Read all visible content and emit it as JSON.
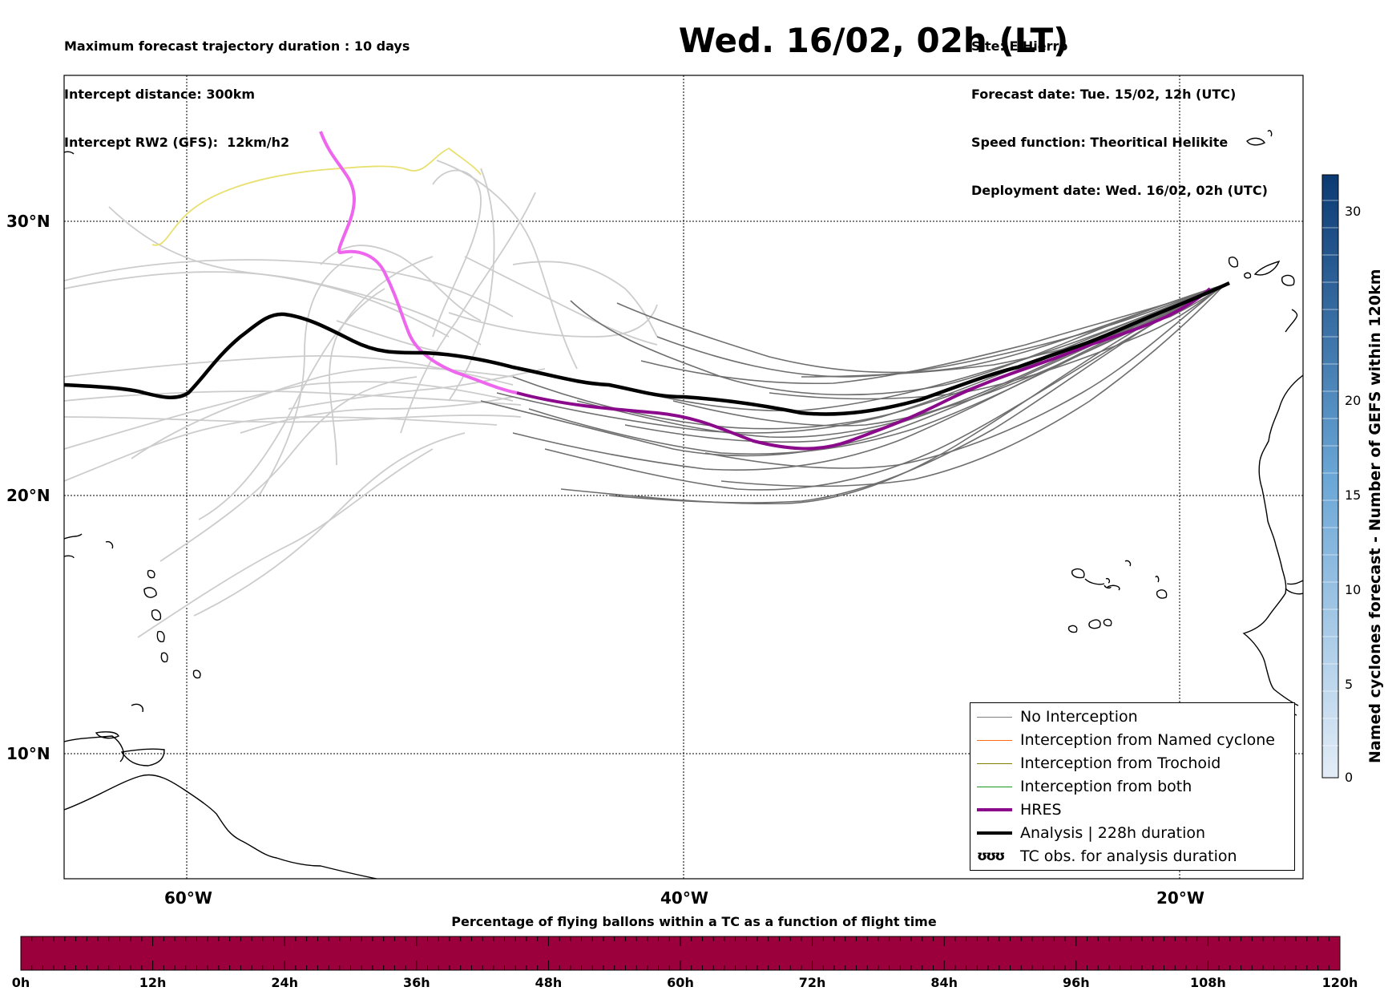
{
  "header_left": [
    "Maximum forecast trajectory duration : 10 days",
    "Intercept distance: 300km",
    "Intercept RW2 (GFS):  12km/h2"
  ],
  "title": "Wed. 16/02, 02h (LT)",
  "header_right": [
    "Site: ElHierro",
    "Forecast date: Tue. 15/02, 12h (UTC)",
    "Speed function: Theoritical Helikite",
    "Deployment date: Wed. 16/02, 02h (UTC)"
  ],
  "map": {
    "lat_labels": [
      "30°N",
      "20°N",
      "10°N"
    ],
    "lon_labels": [
      "60°W",
      "40°W",
      "20°W"
    ],
    "grid": "dotted"
  },
  "legend": {
    "items": [
      {
        "label": "No Interception",
        "color": "#808080"
      },
      {
        "label": "Interception from Named cyclone",
        "color": "#ff6a1a"
      },
      {
        "label": "Interception from Trochoid",
        "color": "#808000"
      },
      {
        "label": "Interception from both",
        "color": "#1a9a1a"
      },
      {
        "label": "HRES",
        "color": "#8b0a8b"
      },
      {
        "label": "Analysis | 228h duration",
        "color": "#000000"
      }
    ],
    "tc_symbol": "ʊʊʊ",
    "tc_label": "TC obs. for analysis duration"
  },
  "colorbar": {
    "title": "Named cyclones forecast - Number of GEFS within 120km",
    "ticks": [
      "0",
      "5",
      "10",
      "15",
      "20",
      "30"
    ],
    "color_low": "#dce8f4",
    "color_high": "#0b3a73"
  },
  "bottom_bar": {
    "title": "Percentage of flying ballons within a TC as a function of flight time",
    "ticks": [
      "0h",
      "12h",
      "24h",
      "36h",
      "48h",
      "60h",
      "72h",
      "84h",
      "96h",
      "108h",
      "120h"
    ],
    "color": "#9b003d"
  },
  "series_colors": {
    "ensemble_far": "#cccccc",
    "ensemble_near": "#6e6e6e",
    "yellow_track": "#e8e070",
    "hres_early": "#ee66ee",
    "hres": "#8b0a8b",
    "analysis": "#000000"
  }
}
